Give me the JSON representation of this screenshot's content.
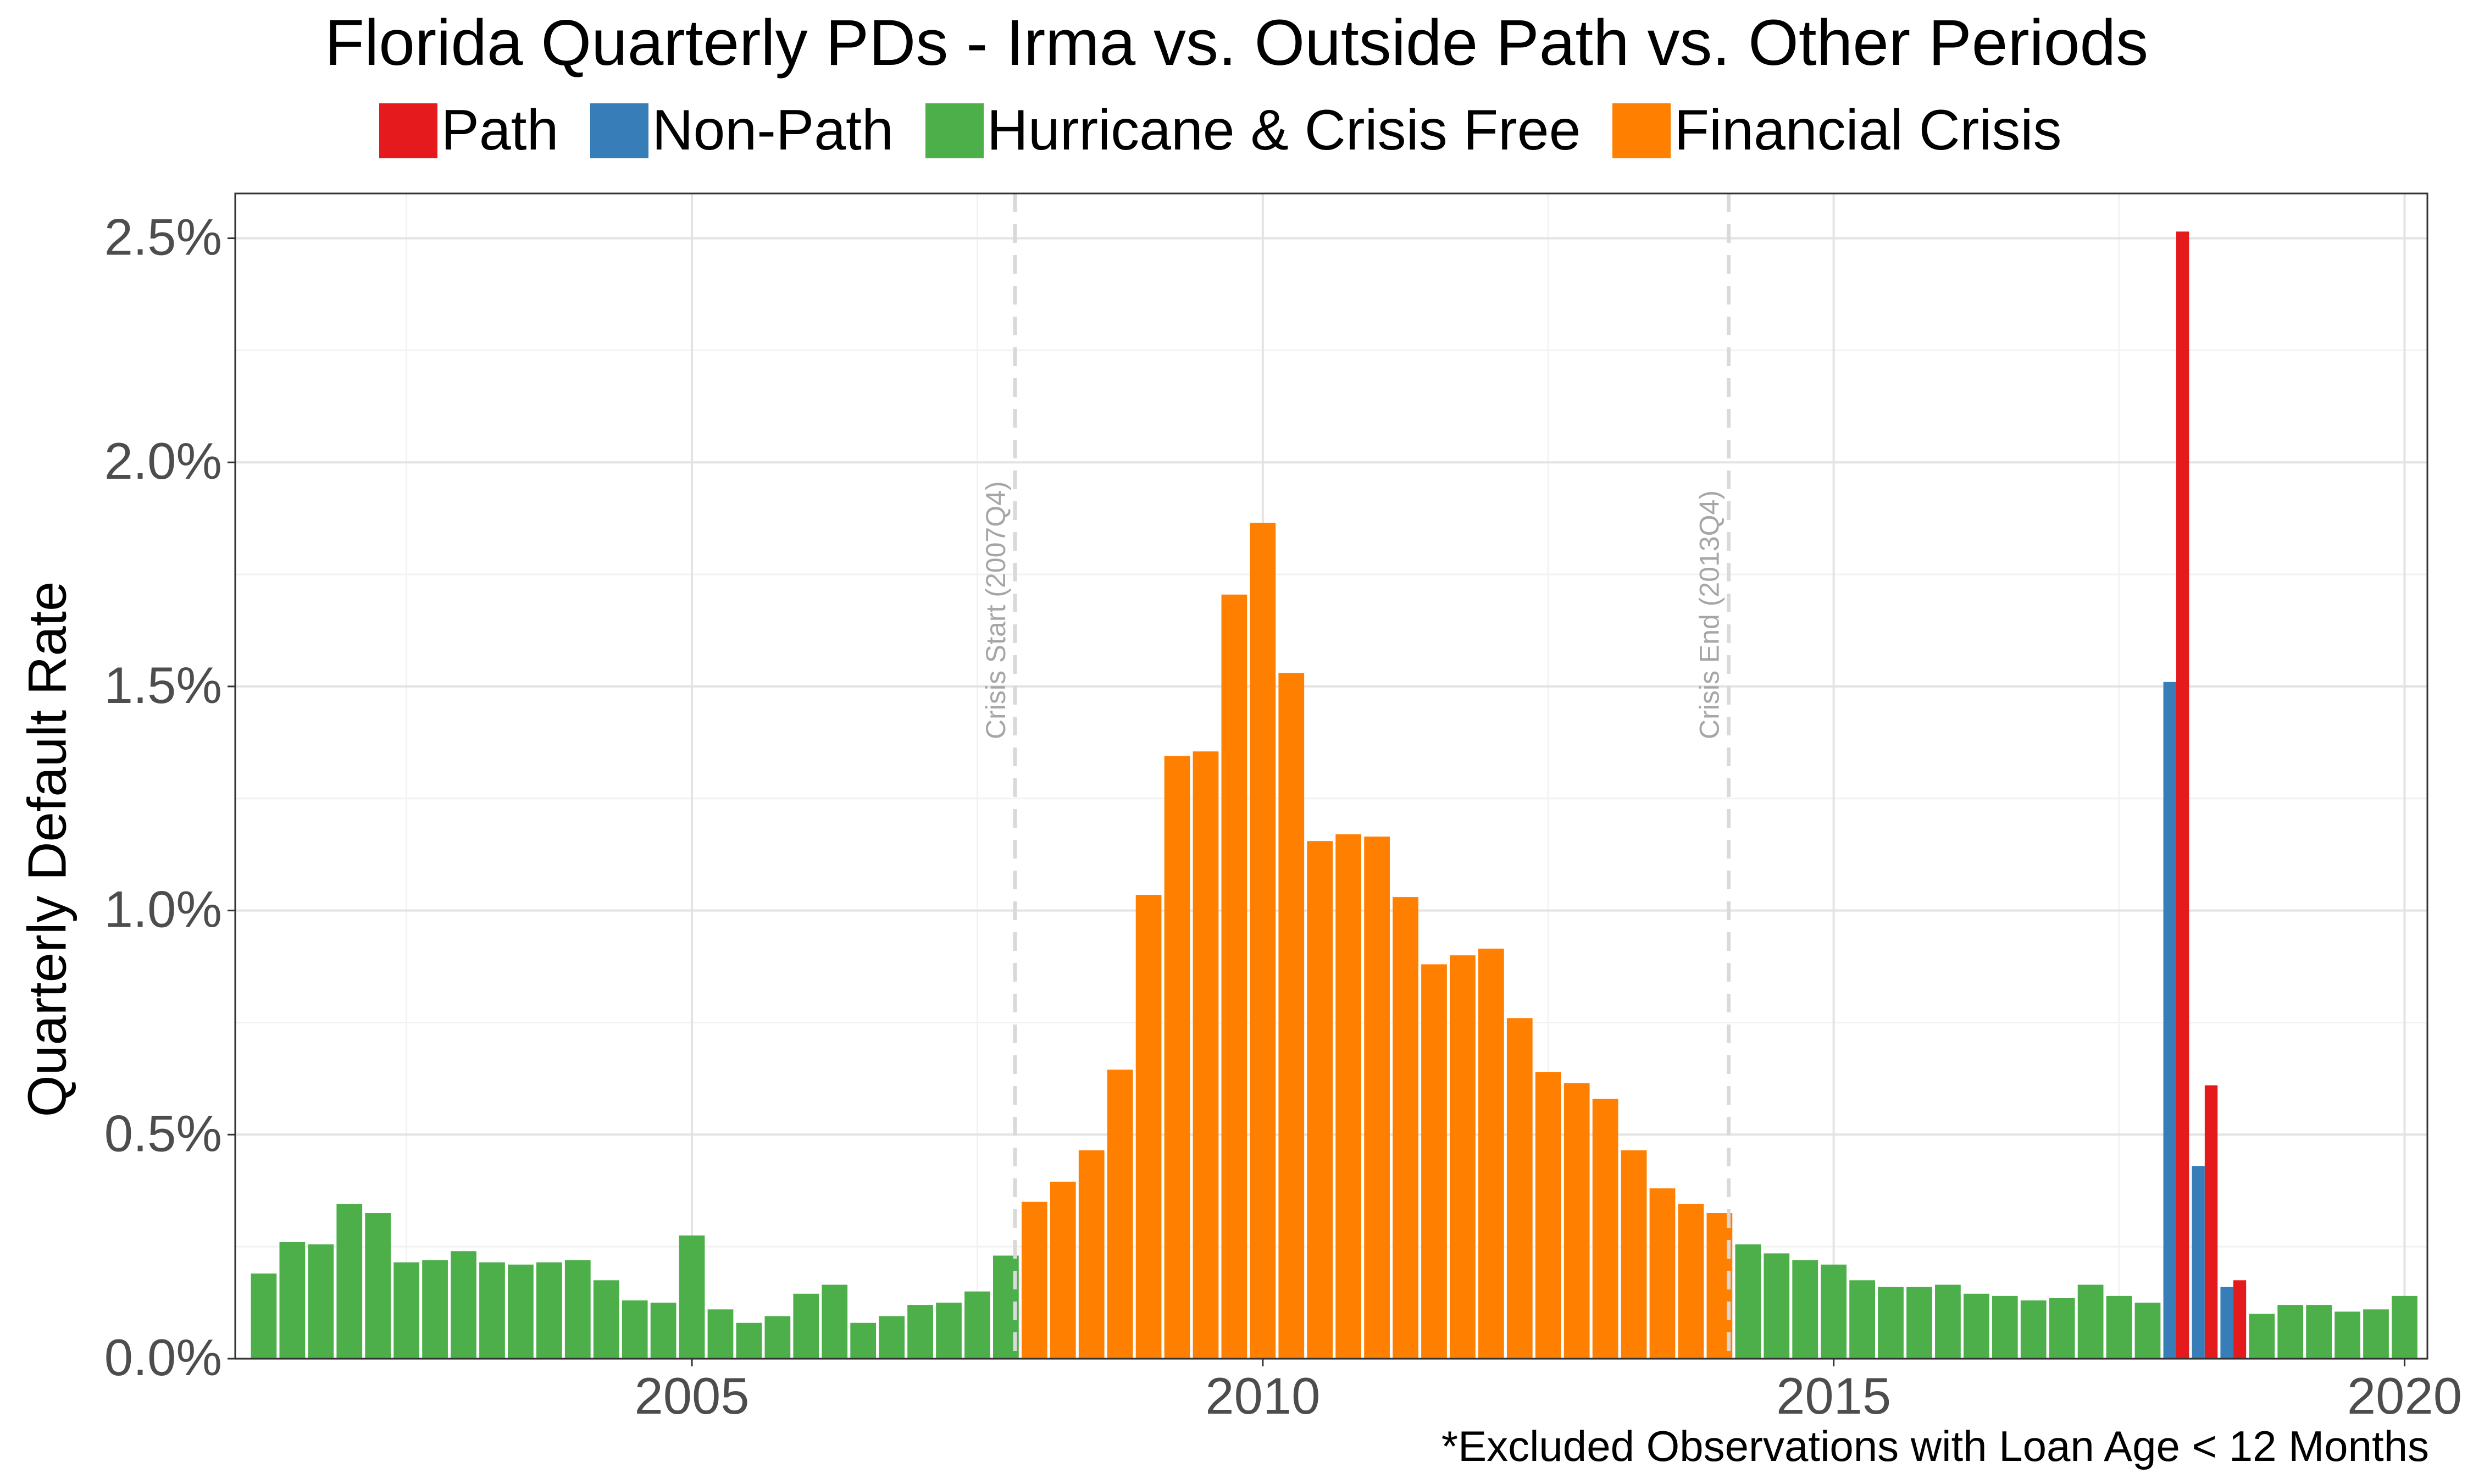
{
  "chart_data": {
    "type": "bar",
    "title": "Florida Quarterly PDs - Irma vs. Outside Path vs. Other Periods",
    "xlabel": "",
    "ylabel": "Quarterly Default Rate",
    "note": "*Excluded Observations with Loan Age < 12 Months",
    "xlim": [
      2001.0,
      2020.2
    ],
    "ylim": [
      0,
      2.6
    ],
    "x_ticks": [
      2005,
      2010,
      2015,
      2020
    ],
    "x_tick_labels": [
      "2005",
      "2010",
      "2015",
      "2020"
    ],
    "y_ticks": [
      0,
      0.5,
      1.0,
      1.5,
      2.0,
      2.5
    ],
    "y_tick_labels": [
      "0.0%",
      "0.5%",
      "1.0%",
      "1.5%",
      "2.0%",
      "2.5%"
    ],
    "grid": true,
    "legend_position": "top",
    "legend": [
      {
        "name": "Path",
        "color": "#E41A1C"
      },
      {
        "name": "Non-Path",
        "color": "#377EB8"
      },
      {
        "name": "Hurricane & Crisis Free",
        "color": "#4DAF4A"
      },
      {
        "name": "Financial Crisis",
        "color": "#FF7F00"
      }
    ],
    "reference_lines": [
      {
        "x": 2007.83,
        "label": "Crisis Start (2007Q4)"
      },
      {
        "x": 2014.08,
        "label": "Crisis End (2013Q4)"
      }
    ],
    "series": [
      {
        "name": "Hurricane & Crisis Free",
        "color": "#4DAF4A",
        "x": [
          2001.25,
          2001.5,
          2001.75,
          2002.0,
          2002.25,
          2002.5,
          2002.75,
          2003.0,
          2003.25,
          2003.5,
          2003.75,
          2004.0,
          2004.25,
          2004.5,
          2004.75,
          2005.0,
          2005.25,
          2005.5,
          2005.75,
          2006.0,
          2006.25,
          2006.5,
          2006.75,
          2007.0,
          2007.25,
          2007.5,
          2007.75,
          2014.25,
          2014.5,
          2014.75,
          2015.0,
          2015.25,
          2015.5,
          2015.75,
          2016.0,
          2016.25,
          2016.5,
          2016.75,
          2017.0,
          2017.25,
          2017.5,
          2017.75,
          2018.75,
          2019.0,
          2019.25,
          2019.5,
          2019.75,
          2020.0
        ],
        "values": [
          0.19,
          0.26,
          0.255,
          0.345,
          0.325,
          0.215,
          0.22,
          0.24,
          0.215,
          0.21,
          0.215,
          0.22,
          0.175,
          0.13,
          0.125,
          0.275,
          0.11,
          0.08,
          0.095,
          0.145,
          0.165,
          0.08,
          0.095,
          0.12,
          0.125,
          0.15,
          0.23,
          0.255,
          0.235,
          0.22,
          0.21,
          0.175,
          0.16,
          0.16,
          0.165,
          0.145,
          0.14,
          0.13,
          0.135,
          0.165,
          0.14,
          0.125,
          0.1,
          0.12,
          0.12,
          0.105,
          0.11,
          0.14
        ]
      },
      {
        "name": "Financial Crisis",
        "color": "#FF7F00",
        "x": [
          2008.0,
          2008.25,
          2008.5,
          2008.75,
          2009.0,
          2009.25,
          2009.5,
          2009.75,
          2010.0,
          2010.25,
          2010.5,
          2010.75,
          2011.0,
          2011.25,
          2011.5,
          2011.75,
          2012.0,
          2012.25,
          2012.5,
          2012.75,
          2013.0,
          2013.25,
          2013.5,
          2013.75,
          2014.0
        ],
        "values": [
          0.35,
          0.395,
          0.465,
          0.645,
          1.035,
          1.345,
          1.355,
          1.705,
          1.865,
          1.53,
          1.155,
          1.17,
          1.165,
          1.03,
          0.88,
          0.9,
          0.915,
          0.76,
          0.64,
          0.615,
          0.58,
          0.465,
          0.38,
          0.345,
          0.325
        ]
      },
      {
        "name": "Non-Path",
        "color": "#377EB8",
        "x": [
          2018.0,
          2018.25,
          2018.5
        ],
        "values": [
          1.51,
          0.43,
          0.16
        ]
      },
      {
        "name": "Path",
        "color": "#E41A1C",
        "x": [
          2018.0,
          2018.25,
          2018.5
        ],
        "values": [
          2.515,
          0.61,
          0.175
        ]
      }
    ]
  }
}
